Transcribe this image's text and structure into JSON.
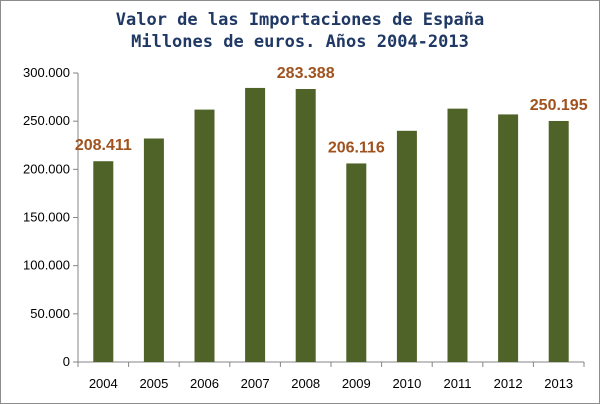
{
  "chart_data": {
    "type": "bar",
    "title": "Valor de las Importaciones de España",
    "subtitle": "Millones de euros. Años 2004-2013",
    "xlabel": "",
    "ylabel": "",
    "categories": [
      "2004",
      "2005",
      "2006",
      "2007",
      "2008",
      "2009",
      "2010",
      "2011",
      "2012",
      "2013"
    ],
    "values": [
      208411,
      232000,
      262000,
      284500,
      283388,
      206116,
      240000,
      263000,
      257000,
      250195
    ],
    "data_labels": [
      {
        "category": "2004",
        "text": "208.411"
      },
      {
        "category": "2008",
        "text": "283.388"
      },
      {
        "category": "2009",
        "text": "206.116"
      },
      {
        "category": "2013",
        "text": "250.195"
      }
    ],
    "y_ticks": [
      0,
      50000,
      100000,
      150000,
      200000,
      250000,
      300000
    ],
    "y_tick_labels": [
      "0",
      "50.000",
      "100.000",
      "150.000",
      "200.000",
      "250.000",
      "300.000"
    ],
    "ylim": [
      0,
      300000
    ],
    "grid": false,
    "legend": "none",
    "bar_color": "#4f6228",
    "label_color": "#a0521e",
    "title_color": "#1f3864"
  }
}
